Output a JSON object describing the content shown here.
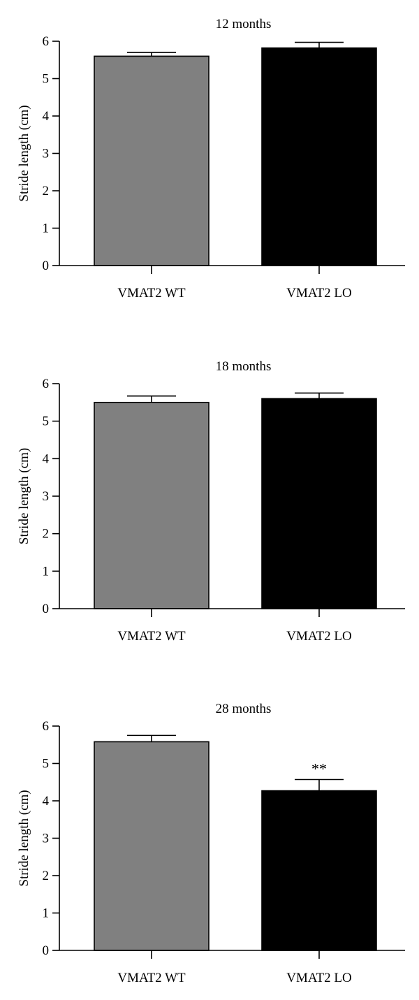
{
  "chart_data": [
    {
      "type": "bar",
      "title": "12 months",
      "ylabel": "Stride length (cm)",
      "xlabel": "",
      "ylim": [
        0,
        6
      ],
      "yticks": [
        "0",
        "1",
        "2",
        "3",
        "4",
        "5",
        "6"
      ],
      "categories": [
        "VMAT2 WT",
        "VMAT2 LO"
      ],
      "values": [
        5.6,
        5.82
      ],
      "errors": [
        0.1,
        0.15
      ],
      "colors": [
        "#808080",
        "#000000"
      ],
      "annotations": [
        "",
        ""
      ],
      "grid": false
    },
    {
      "type": "bar",
      "title": "18 months",
      "ylabel": "Stride length (cm)",
      "xlabel": "",
      "ylim": [
        0,
        6
      ],
      "yticks": [
        "0",
        "1",
        "2",
        "3",
        "4",
        "5",
        "6"
      ],
      "categories": [
        "VMAT2 WT",
        "VMAT2 LO"
      ],
      "values": [
        5.5,
        5.6
      ],
      "errors": [
        0.17,
        0.15
      ],
      "colors": [
        "#808080",
        "#000000"
      ],
      "annotations": [
        "",
        ""
      ],
      "grid": false
    },
    {
      "type": "bar",
      "title": "28 months",
      "ylabel": "Stride length (cm)",
      "xlabel": "",
      "ylim": [
        0,
        6
      ],
      "yticks": [
        "0",
        "1",
        "2",
        "3",
        "4",
        "5",
        "6"
      ],
      "categories": [
        "VMAT2 WT",
        "VMAT2 LO"
      ],
      "values": [
        5.58,
        4.27
      ],
      "errors": [
        0.17,
        0.3
      ],
      "colors": [
        "#808080",
        "#000000"
      ],
      "annotations": [
        "",
        "**"
      ],
      "grid": false
    }
  ]
}
